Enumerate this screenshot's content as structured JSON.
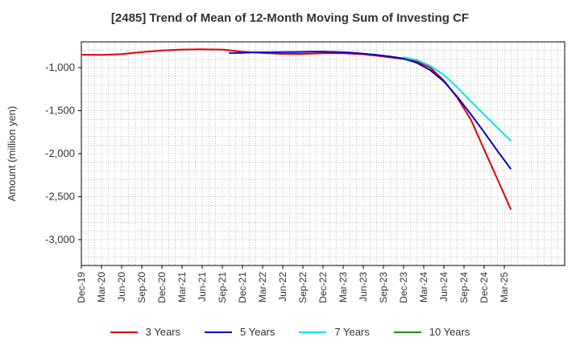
{
  "chart_data": {
    "type": "line",
    "title": "[2485]  Trend of Mean of 12-Month Moving Sum of Investing CF",
    "xlabel": "",
    "ylabel": "Amount (million yen)",
    "ylim": [
      -3300,
      -700
    ],
    "yticks": [
      -1000,
      -1500,
      -2000,
      -2500,
      -3000
    ],
    "ytick_labels": [
      "-1,000",
      "-1,500",
      "-2,000",
      "-2,500",
      "-3,000"
    ],
    "x_domain_months": [
      0,
      72
    ],
    "xticks": [
      "Dec-19",
      "Mar-20",
      "Jun-20",
      "Sep-20",
      "Dec-20",
      "Mar-21",
      "Jun-21",
      "Sep-21",
      "Dec-21",
      "Mar-22",
      "Jun-22",
      "Sep-22",
      "Dec-22",
      "Mar-23",
      "Jun-23",
      "Sep-23",
      "Dec-23",
      "Mar-24",
      "Jun-24",
      "Sep-24",
      "Dec-24",
      "Mar-25"
    ],
    "grid": true,
    "legend_position": "bottom",
    "series": [
      {
        "name": "3 Years",
        "color": "#dd0000",
        "x": [
          0,
          3,
          6,
          9,
          12,
          15,
          18,
          21,
          24,
          27,
          30,
          33,
          36,
          39,
          42,
          44,
          46,
          48,
          50,
          52,
          54,
          56,
          58,
          60,
          62,
          64
        ],
        "y": [
          -850,
          -852,
          -843,
          -820,
          -800,
          -790,
          -787,
          -790,
          -815,
          -830,
          -840,
          -840,
          -832,
          -832,
          -845,
          -862,
          -880,
          -900,
          -930,
          -1000,
          -1150,
          -1350,
          -1600,
          -1950,
          -2300,
          -2650
        ]
      },
      {
        "name": "5 Years",
        "color": "#0000cc",
        "x": [
          22,
          24,
          26,
          28,
          30,
          32,
          34,
          36,
          38,
          40,
          42,
          44,
          46,
          48,
          50,
          52,
          54,
          56,
          58,
          60,
          62,
          64
        ],
        "y": [
          -830,
          -828,
          -822,
          -822,
          -820,
          -818,
          -815,
          -815,
          -818,
          -825,
          -838,
          -852,
          -870,
          -895,
          -945,
          -1030,
          -1160,
          -1340,
          -1540,
          -1750,
          -1970,
          -2180
        ]
      },
      {
        "name": "7 Years",
        "color": "#00e5ee",
        "x": [
          48,
          50,
          52,
          54,
          56,
          58,
          60,
          62,
          64
        ],
        "y": [
          -880,
          -910,
          -980,
          -1085,
          -1230,
          -1390,
          -1545,
          -1700,
          -1850
        ]
      },
      {
        "name": "10 Years",
        "color": "#228b22",
        "x": [],
        "y": []
      }
    ]
  }
}
